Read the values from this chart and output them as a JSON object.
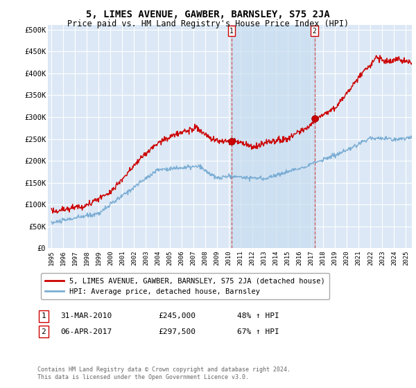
{
  "title": "5, LIMES AVENUE, GAWBER, BARNSLEY, S75 2JA",
  "subtitle": "Price paid vs. HM Land Registry's House Price Index (HPI)",
  "title_fontsize": 10,
  "subtitle_fontsize": 8.5,
  "background_color": "#ffffff",
  "plot_bg_color": "#dce8f5",
  "shade_color": "#c8ddf0",
  "grid_color": "#ffffff",
  "red_line_color": "#cc0000",
  "blue_line_color": "#7aadd4",
  "marker1_x": 2010.25,
  "marker1_y": 245000,
  "marker1_label": "1",
  "marker1_date": "31-MAR-2010",
  "marker1_price": "£245,000",
  "marker1_hpi": "48% ↑ HPI",
  "marker2_x": 2017.27,
  "marker2_y": 297500,
  "marker2_label": "2",
  "marker2_date": "06-APR-2017",
  "marker2_price": "£297,500",
  "marker2_hpi": "67% ↑ HPI",
  "vline1_x": 2010.25,
  "vline2_x": 2017.27,
  "ylim": [
    0,
    510000
  ],
  "xlim": [
    1994.7,
    2025.5
  ],
  "yticks": [
    0,
    50000,
    100000,
    150000,
    200000,
    250000,
    300000,
    350000,
    400000,
    450000,
    500000
  ],
  "ytick_labels": [
    "£0",
    "£50K",
    "£100K",
    "£150K",
    "£200K",
    "£250K",
    "£300K",
    "£350K",
    "£400K",
    "£450K",
    "£500K"
  ],
  "xticks": [
    1995,
    1996,
    1997,
    1998,
    1999,
    2000,
    2001,
    2002,
    2003,
    2004,
    2005,
    2006,
    2007,
    2008,
    2009,
    2010,
    2011,
    2012,
    2013,
    2014,
    2015,
    2016,
    2017,
    2018,
    2019,
    2020,
    2021,
    2022,
    2023,
    2024,
    2025
  ],
  "legend_red_label": "5, LIMES AVENUE, GAWBER, BARNSLEY, S75 2JA (detached house)",
  "legend_blue_label": "HPI: Average price, detached house, Barnsley",
  "footer": "Contains HM Land Registry data © Crown copyright and database right 2024.\nThis data is licensed under the Open Government Licence v3.0."
}
